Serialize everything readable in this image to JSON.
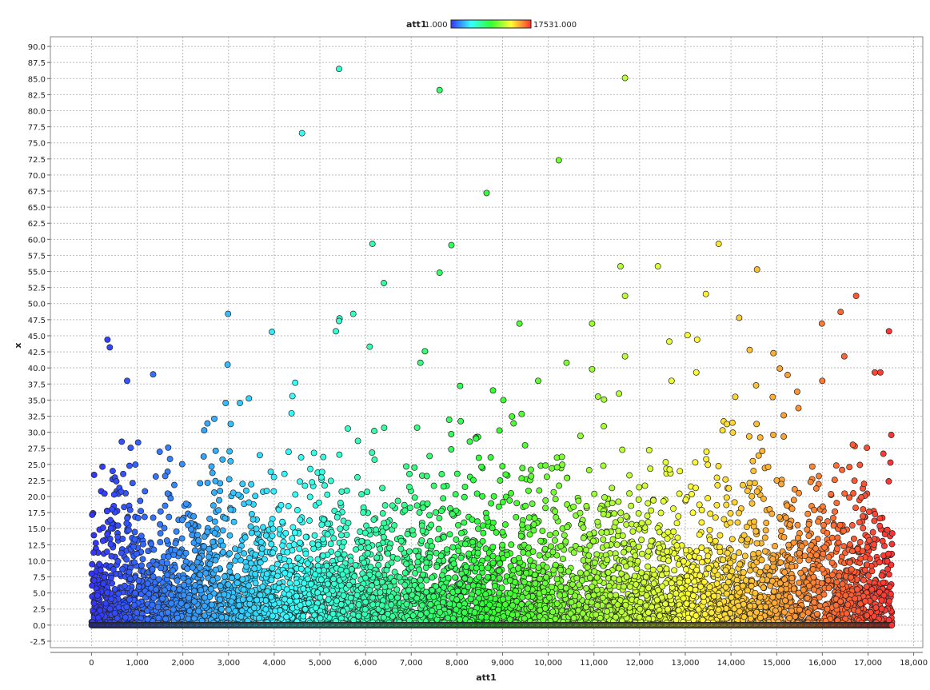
{
  "chart_data": {
    "type": "scatter",
    "title": "",
    "xlabel": "att1",
    "ylabel": "x",
    "xlim": [
      -900,
      18200
    ],
    "ylim": [
      -3.5,
      91.5
    ],
    "xticks": [
      0,
      1000,
      2000,
      3000,
      4000,
      5000,
      6000,
      7000,
      8000,
      9000,
      10000,
      11000,
      12000,
      13000,
      14000,
      15000,
      16000,
      17000,
      18000
    ],
    "xtick_labels": [
      "0",
      "1,000",
      "2,000",
      "3,000",
      "4,000",
      "5,000",
      "6,000",
      "7,000",
      "8,000",
      "9,000",
      "10,000",
      "11,000",
      "12,000",
      "13,000",
      "14,000",
      "15,000",
      "16,000",
      "17,000",
      "18,000"
    ],
    "yticks": [
      -2.5,
      0,
      2.5,
      5,
      7.5,
      10,
      12.5,
      15,
      17.5,
      20,
      22.5,
      25,
      27.5,
      30,
      32.5,
      35,
      37.5,
      40,
      42.5,
      45,
      47.5,
      50,
      52.5,
      55,
      57.5,
      60,
      62.5,
      65,
      67.5,
      70,
      72.5,
      75,
      77.5,
      80,
      82.5,
      85,
      87.5,
      90
    ],
    "ytick_labels": [
      "-2.5",
      "0.0",
      "2.5",
      "5.0",
      "7.5",
      "10.0",
      "12.5",
      "15.0",
      "17.5",
      "20.0",
      "22.5",
      "25.0",
      "27.5",
      "30.0",
      "32.5",
      "35.0",
      "37.5",
      "40.0",
      "42.5",
      "45.0",
      "47.5",
      "50.0",
      "52.5",
      "55.0",
      "57.5",
      "60.0",
      "62.5",
      "65.0",
      "67.5",
      "70.0",
      "72.5",
      "75.0",
      "77.5",
      "80.0",
      "82.5",
      "85.0",
      "87.5",
      "90.0"
    ],
    "grid": true,
    "color_by": "att1",
    "color_range": [
      1.0,
      17531.0
    ],
    "color_scale": [
      "#3333ff",
      "#33ffff",
      "#33ff33",
      "#ffff33",
      "#ff3333"
    ],
    "legend": {
      "position": "top-center",
      "name": "att1",
      "min_label": "1.000",
      "max_label": "17531.000"
    },
    "x_domain": [
      1,
      17531
    ],
    "points_note_count": 17531,
    "points": [
      [
        5420,
        86.5
      ],
      [
        11680,
        85.1
      ],
      [
        7620,
        83.2
      ],
      [
        4610,
        76.5
      ],
      [
        10230,
        72.3
      ],
      [
        8650,
        67.2
      ],
      [
        6150,
        59.3
      ],
      [
        7880,
        59.1
      ],
      [
        13730,
        59.3
      ],
      [
        11580,
        55.8
      ],
      [
        12400,
        55.8
      ],
      [
        14570,
        55.3
      ],
      [
        7620,
        54.8
      ],
      [
        6400,
        53.2
      ],
      [
        13450,
        51.5
      ],
      [
        11680,
        51.2
      ],
      [
        16740,
        51.2
      ],
      [
        16400,
        48.7
      ],
      [
        2990,
        48.4
      ],
      [
        5730,
        48.4
      ],
      [
        5430,
        47.7
      ],
      [
        14180,
        47.8
      ],
      [
        5420,
        47.3
      ],
      [
        9370,
        46.9
      ],
      [
        10960,
        46.9
      ],
      [
        15990,
        46.9
      ],
      [
        3950,
        45.6
      ],
      [
        5350,
        45.7
      ],
      [
        17460,
        45.7
      ],
      [
        13050,
        45.1
      ],
      [
        13260,
        44.4
      ],
      [
        12650,
        44.1
      ],
      [
        350,
        44.4
      ],
      [
        400,
        43.2
      ],
      [
        6090,
        43.3
      ],
      [
        14410,
        42.8
      ],
      [
        7300,
        42.6
      ],
      [
        14930,
        42.3
      ],
      [
        11680,
        41.8
      ],
      [
        16480,
        41.8
      ],
      [
        7200,
        40.8
      ],
      [
        10400,
        40.8
      ],
      [
        2980,
        40.5
      ],
      [
        15070,
        39.9
      ],
      [
        10960,
        39.8
      ],
      [
        1350,
        39.0
      ],
      [
        13240,
        39.3
      ],
      [
        17150,
        39.3
      ],
      [
        17270,
        39.3
      ],
      [
        15240,
        38.9
      ],
      [
        780,
        38.0
      ],
      [
        9780,
        38.0
      ],
      [
        12700,
        38.0
      ],
      [
        16000,
        38.0
      ],
      [
        4460,
        37.7
      ],
      [
        8070,
        37.2
      ],
      [
        14550,
        37.3
      ],
      [
        8790,
        36.5
      ],
      [
        15450,
        36.3
      ],
      [
        11550,
        36.0
      ]
    ]
  }
}
